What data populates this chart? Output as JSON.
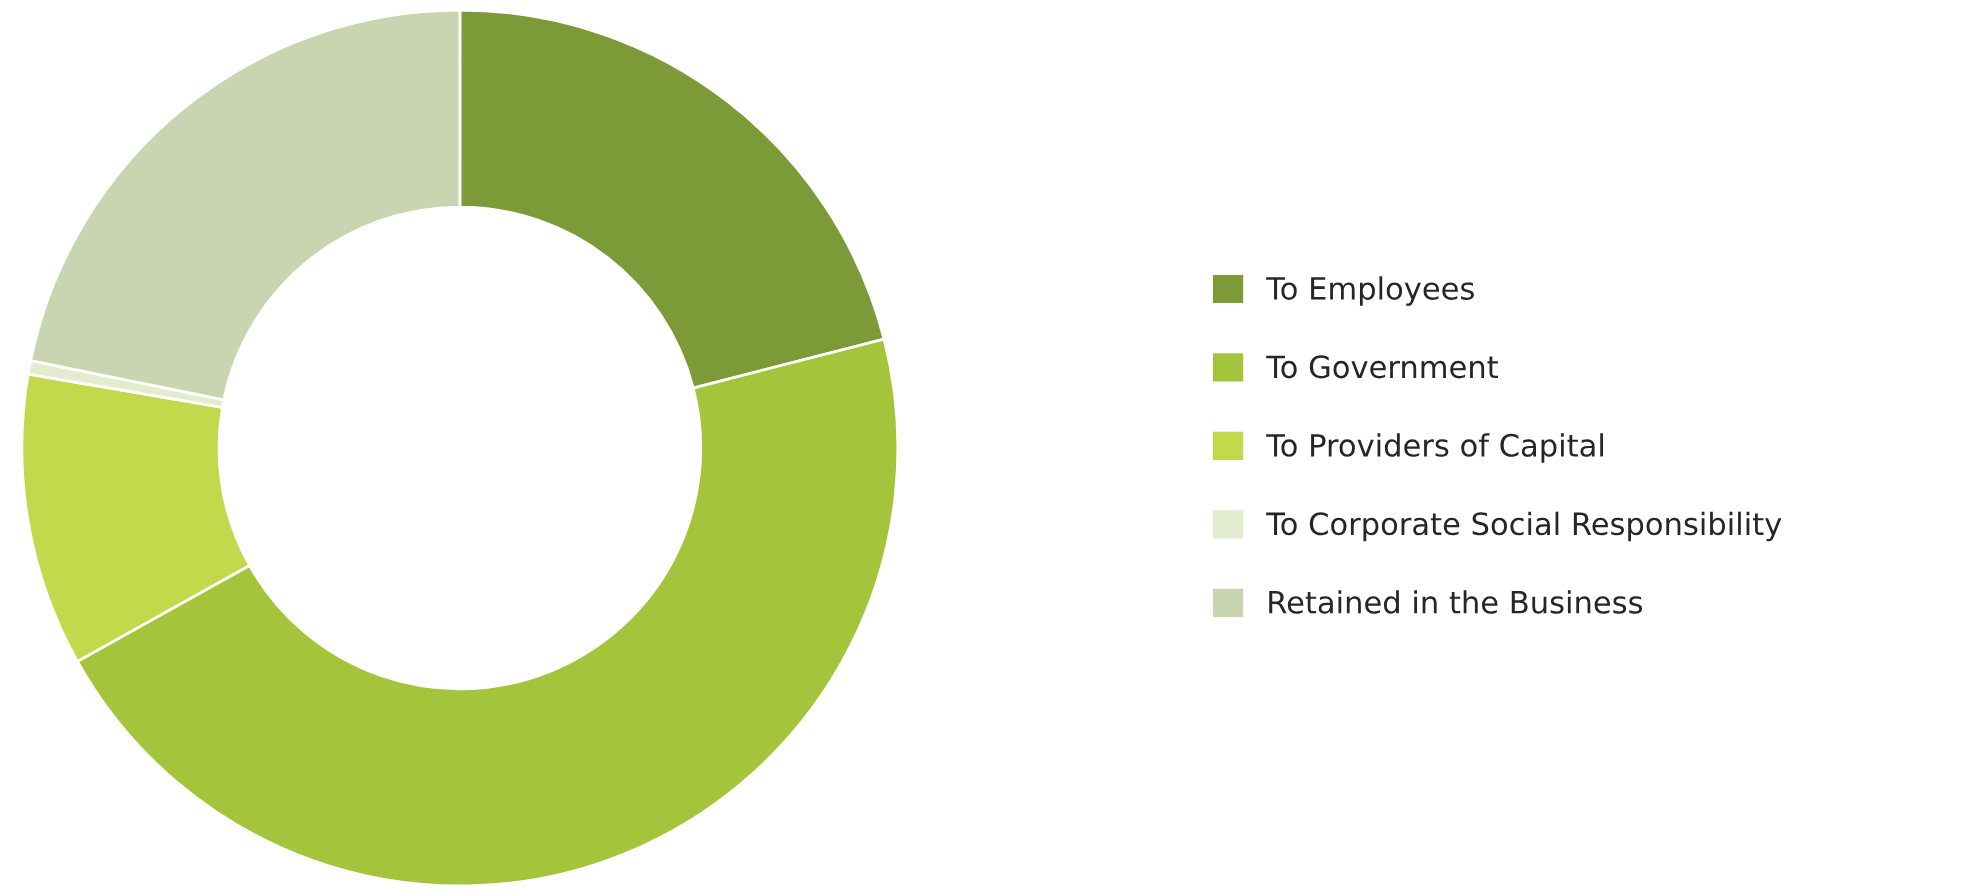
{
  "chart_data": {
    "type": "donut",
    "categories": [
      "To Employees",
      "To Government",
      "To Providers of Capital",
      "To Corporate Social Responsibility",
      "Retained in the Business"
    ],
    "values": [
      21.0,
      45.9,
      10.8,
      0.5,
      21.8
    ],
    "colors": [
      "#7c9a38",
      "#a4c43c",
      "#c3d84a",
      "#e4ecd0",
      "#c9d4b0"
    ],
    "legend": "right"
  }
}
